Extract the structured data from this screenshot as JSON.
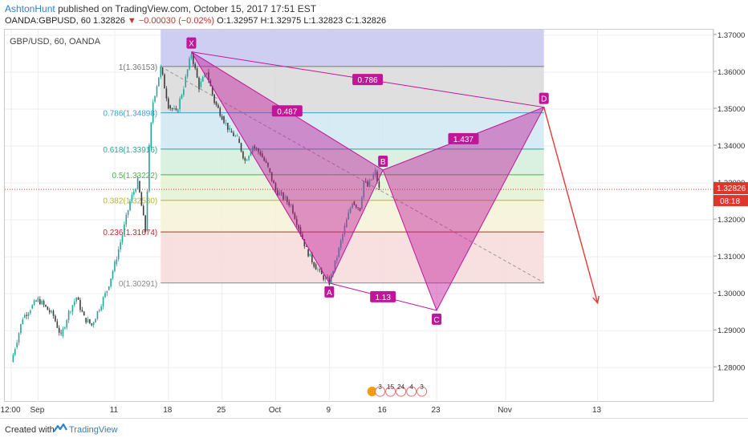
{
  "header": {
    "author": "AshtonHunt",
    "published": "published on TradingView.com, October 15, 2017 17:51 EST",
    "symbol_line": "OANDA:GBPUSD, 60",
    "last": "1.32826",
    "change": "−0.00030 (−0.02%)",
    "ohlc": "O:1.32957 H:1.32975 L:1.32823 C:1.32826"
  },
  "chart_title": "GBP/USD, 60, OANDA",
  "footer": {
    "created_with": "Created with",
    "brand": "TradingView"
  },
  "colors": {
    "bull": "#26a69a",
    "bear": "#3d3d3d",
    "pattern": "#c2169a",
    "arrow": "#e53935",
    "price_label": "#e0352b"
  },
  "icons": [
    "tradingview-logo-icon",
    "down-triangle-icon",
    "earnings-flag-icon"
  ],
  "chart_data": {
    "type": "line",
    "ylim": [
      1.2705,
      1.3715
    ],
    "y_ticks": [
      "1.28000",
      "1.29000",
      "1.30000",
      "1.31000",
      "1.32000",
      "1.33000",
      "1.34000",
      "1.35000",
      "1.36000",
      "1.37000"
    ],
    "x_ticks": [
      "12:00",
      "Sep",
      "11",
      "18",
      "25",
      "Oct",
      "9",
      "16",
      "23",
      "Nov",
      "13"
    ],
    "fib_levels": [
      {
        "label": "1(1.36153)",
        "value": 1.36153,
        "color": "#777777",
        "band": "#d9d9d9"
      },
      {
        "label": "0.786(1.34898)",
        "value": 1.34898,
        "color": "#3ba0d8",
        "band": "#cfe7f2"
      },
      {
        "label": "0.618(1.33916)",
        "value": 1.33916,
        "color": "#26a69a",
        "band": "#d3eedd"
      },
      {
        "label": "0.5(1.33222)",
        "value": 1.33222,
        "color": "#4caf50",
        "band": "#e3f2d3"
      },
      {
        "label": "0.382(1.32530)",
        "value": 1.3253,
        "color": "#b5b532",
        "band": "#f4f2d6"
      },
      {
        "label": "0.236(1.31674)",
        "value": 1.31674,
        "color": "#c62828",
        "band": "#f7dada"
      },
      {
        "label": "0(1.30291)",
        "value": 1.30291,
        "color": "#888888",
        "band": null
      }
    ],
    "top_band": {
      "value": 1.3715,
      "color": "#c9c9f1"
    },
    "pattern": {
      "points": [
        {
          "label": "X",
          "date": "2017-09-21",
          "value": 1.3655
        },
        {
          "label": "A",
          "date": "2017-10-09",
          "value": 1.3029
        },
        {
          "label": "B",
          "date": "2017-10-16",
          "value": 1.3335
        },
        {
          "label": "C",
          "date": "2017-10-23",
          "value": 1.2955
        },
        {
          "label": "D",
          "date": "2017-11-06",
          "value": 1.3505
        }
      ],
      "ratios": [
        {
          "label": "0.786",
          "between": [
            "X",
            "D"
          ]
        },
        {
          "label": "0.487",
          "between": [
            "X",
            "B"
          ]
        },
        {
          "label": "1.437",
          "between": [
            "B",
            "D"
          ]
        },
        {
          "label": "1.13",
          "between": [
            "A",
            "C"
          ]
        }
      ]
    },
    "projection": {
      "from_date": "2017-11-06",
      "from": 1.3505,
      "to_date": "2017-11-13",
      "to": 1.2975
    },
    "trend_line": {
      "from_date": "2017-09-17",
      "from": 1.3615,
      "to_date": "2017-11-06",
      "to": 1.303
    },
    "current_price": {
      "label": "1.32826",
      "value": 1.32826,
      "countdown": "08:18"
    },
    "events": [
      "3",
      "15",
      "24",
      "4",
      "3"
    ],
    "price_path": [
      [
        "2017-08-28T12:00",
        1.2815
      ],
      [
        "2017-08-29",
        1.2855
      ],
      [
        "2017-08-30",
        1.2935
      ],
      [
        "2017-08-31",
        1.296
      ],
      [
        "2017-09-01",
        1.2985
      ],
      [
        "2017-09-03",
        1.294
      ],
      [
        "2017-09-04",
        1.2885
      ],
      [
        "2017-09-05",
        1.295
      ],
      [
        "2017-09-06",
        1.299
      ],
      [
        "2017-09-07",
        1.2935
      ],
      [
        "2017-09-08",
        1.2915
      ],
      [
        "2017-09-10",
        1.301
      ],
      [
        "2017-09-11",
        1.308
      ],
      [
        "2017-09-12",
        1.316
      ],
      [
        "2017-09-13",
        1.325
      ],
      [
        "2017-09-14",
        1.3305
      ],
      [
        "2017-09-15",
        1.317
      ],
      [
        "2017-09-15T12:00",
        1.3395
      ],
      [
        "2017-09-16",
        1.352
      ],
      [
        "2017-09-17",
        1.3612
      ],
      [
        "2017-09-18",
        1.351
      ],
      [
        "2017-09-19",
        1.349
      ],
      [
        "2017-09-20",
        1.356
      ],
      [
        "2017-09-21",
        1.3652
      ],
      [
        "2017-09-22",
        1.356
      ],
      [
        "2017-09-23",
        1.36
      ],
      [
        "2017-09-24",
        1.352
      ],
      [
        "2017-09-25",
        1.348
      ],
      [
        "2017-09-26",
        1.344
      ],
      [
        "2017-09-27",
        1.342
      ],
      [
        "2017-09-28",
        1.336
      ],
      [
        "2017-09-29",
        1.34
      ],
      [
        "2017-09-30",
        1.338
      ],
      [
        "2017-10-01",
        1.334
      ],
      [
        "2017-10-02",
        1.328
      ],
      [
        "2017-10-03",
        1.326
      ],
      [
        "2017-10-04",
        1.324
      ],
      [
        "2017-10-05",
        1.318
      ],
      [
        "2017-10-06",
        1.312
      ],
      [
        "2017-10-07",
        1.308
      ],
      [
        "2017-10-08",
        1.305
      ],
      [
        "2017-10-09",
        1.303
      ],
      [
        "2017-10-10",
        1.31
      ],
      [
        "2017-10-11",
        1.318
      ],
      [
        "2017-10-12",
        1.325
      ],
      [
        "2017-10-13",
        1.323
      ],
      [
        "2017-10-13T12:00",
        1.3305
      ],
      [
        "2017-10-14",
        1.329
      ],
      [
        "2017-10-15",
        1.333
      ],
      [
        "2017-10-15T12:00",
        1.32826
      ]
    ]
  }
}
